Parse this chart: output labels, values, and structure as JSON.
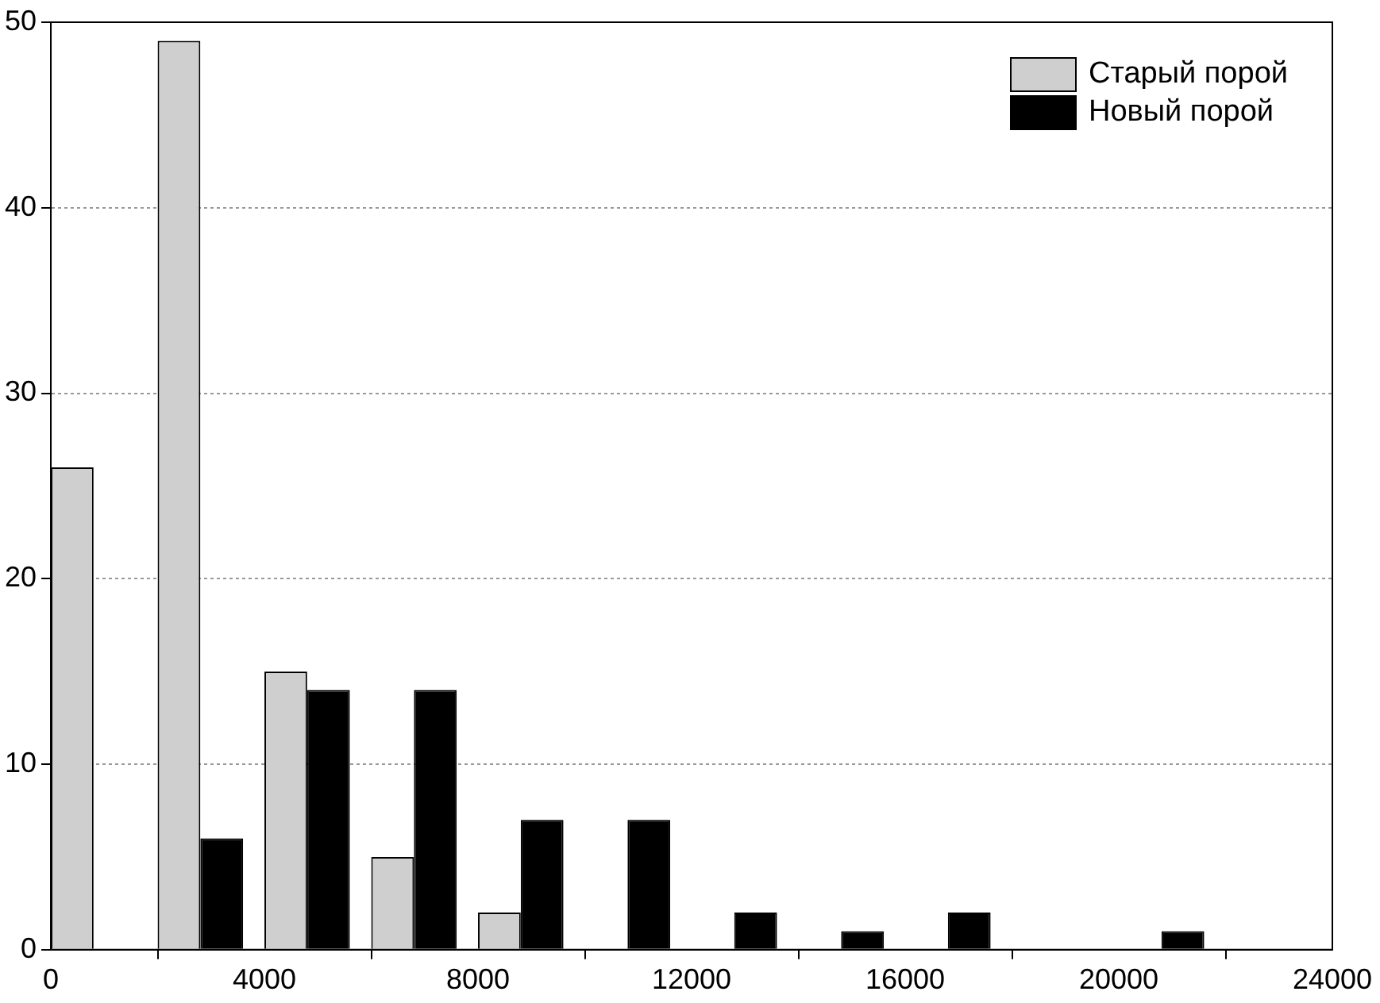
{
  "chart_data": {
    "type": "histogram",
    "bins": [
      0,
      2000,
      4000,
      6000,
      8000,
      10000,
      12000,
      14000,
      16000,
      18000,
      20000,
      22000,
      24000
    ],
    "series": [
      {
        "name": "Старый порой",
        "color": "#cfcfcf",
        "values": [
          26,
          49,
          15,
          5,
          2,
          0,
          0,
          0,
          0,
          0,
          0,
          0
        ]
      },
      {
        "name": "Новый порой",
        "color": "#000000",
        "values": [
          0,
          6,
          14,
          14,
          7,
          7,
          2,
          1,
          2,
          0,
          1,
          0
        ]
      }
    ],
    "xlim": [
      0,
      24000
    ],
    "xticks": [
      0,
      4000,
      8000,
      12000,
      16000,
      20000,
      24000
    ],
    "ylim": [
      0,
      50
    ],
    "yticks": [
      0,
      10,
      20,
      30,
      40,
      50
    ],
    "grid": "y",
    "legend": "top right"
  }
}
